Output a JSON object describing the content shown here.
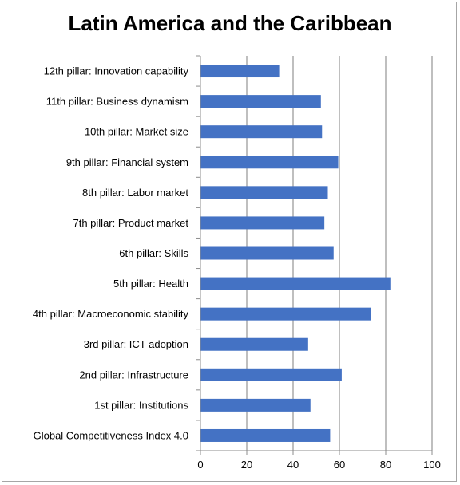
{
  "chart_data": {
    "type": "bar",
    "orientation": "horizontal",
    "title": "Latin America and the Caribbean",
    "categories": [
      "12th pillar: Innovation capability",
      "11th pillar: Business dynamism",
      "10th pillar: Market size",
      "9th pillar: Financial system",
      "8th pillar: Labor market",
      "7th pillar: Product market",
      "6th pillar: Skills",
      "5th pillar: Health",
      "4th pillar: Macroeconomic stability",
      "3rd pillar: ICT adoption",
      "2nd pillar: Infrastructure",
      "1st pillar: Institutions",
      "Global Competitiveness Index 4.0"
    ],
    "values": [
      34,
      52,
      52.5,
      59.5,
      55,
      53.5,
      57.5,
      82,
      73.5,
      46.5,
      61,
      47.5,
      56
    ],
    "xlim": [
      0,
      100
    ],
    "xticks": [
      0,
      20,
      40,
      60,
      80,
      100
    ],
    "grid": true,
    "legend": false,
    "bar_color": "#4472c4",
    "grid_color": "#7f7f7f"
  }
}
